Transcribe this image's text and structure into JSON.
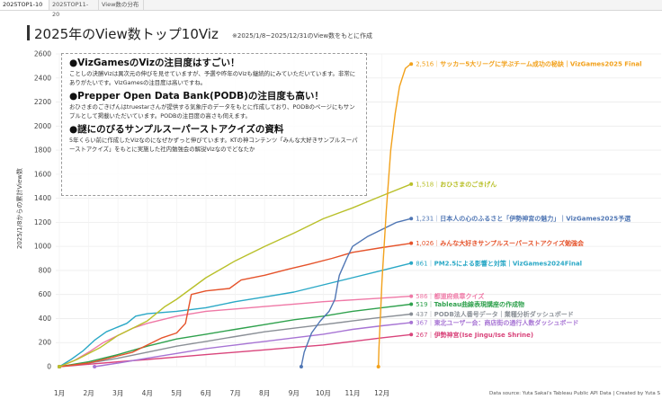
{
  "tabs": [
    {
      "label": "2025TOP1-10",
      "active": true
    },
    {
      "label": "2025TOP11-20",
      "active": false
    },
    {
      "label": "View数の分布",
      "active": false
    }
  ],
  "header": {
    "title": "2025年のView数トップ10Viz",
    "subtitle": "※2025/1/8~2025/12/31のView数をもとに作成"
  },
  "notes": [
    {
      "heading": "●VizGamesのVizの注目度はすごい！",
      "body": "ことしの決勝Vizは異次元の伸びを見せていますが、予選や昨年のVizも継続的にみていただいています。非常にありがたいです。VizGamesの注目度は高いですね。"
    },
    {
      "heading": "●Prepper Open Data Bank(PODB)の注目度も高い！",
      "body": "おひさまのごきげんはtruestarさんが提供する気象庁のデータをもとに作成しており、PODBのページにもサンプルとして掲載いただいています。PODBの注目度の高さも伺えます。"
    },
    {
      "heading": "●謎にのびるサンプルスーパーストアクイズの資料",
      "body": "5年くらい前に作成したVizなのになぜかずっと伸びています。KTの神コンテンツ「みんな大好きサンプルスーパーストアクイズ」をもとに実施した社内勉強会の解説Vizなのでどなたか"
    }
  ],
  "source": "Data source: Yuta Sakai's Tableau Public API Data | Created by Yuta S",
  "chart_data": {
    "type": "line",
    "ylabel": "2025/1/8からの累計View数",
    "ylim": [
      0,
      2600
    ],
    "yticks": [
      0,
      200,
      400,
      600,
      800,
      1000,
      1200,
      1400,
      1600,
      1800,
      2000,
      2200,
      2400,
      2600
    ],
    "xlim": [
      1,
      13.2
    ],
    "xticks": [
      {
        "v": 1,
        "label": "1月"
      },
      {
        "v": 2,
        "label": "2月"
      },
      {
        "v": 3,
        "label": "3月"
      },
      {
        "v": 4,
        "label": "4月"
      },
      {
        "v": 5,
        "label": "5月"
      },
      {
        "v": 6,
        "label": "6月"
      },
      {
        "v": 7,
        "label": "7月"
      },
      {
        "v": 8,
        "label": "8月"
      },
      {
        "v": 9,
        "label": "9月"
      },
      {
        "v": 10,
        "label": "10月"
      },
      {
        "v": 11,
        "label": "11月"
      },
      {
        "v": 12,
        "label": "12月"
      }
    ],
    "grid": true,
    "series": [
      {
        "value_label": "2,516",
        "name": "サッカー5大リーグに学ぶチーム成功の秘訣｜VizGames2025 Final",
        "color": "#f2a11b",
        "points": [
          [
            11.88,
            0
          ],
          [
            11.9,
            150
          ],
          [
            12.0,
            700
          ],
          [
            12.15,
            1300
          ],
          [
            12.3,
            1800
          ],
          [
            12.45,
            2100
          ],
          [
            12.6,
            2330
          ],
          [
            12.8,
            2480
          ],
          [
            12.95,
            2510
          ],
          [
            13.0,
            2516
          ]
        ]
      },
      {
        "value_label": "1,518",
        "name": "おひさまのごきげん",
        "color": "#b9c02a",
        "points": [
          [
            1.0,
            0
          ],
          [
            1.6,
            60
          ],
          [
            2.4,
            160
          ],
          [
            3.0,
            260
          ],
          [
            3.5,
            320
          ],
          [
            4.0,
            380
          ],
          [
            4.6,
            500
          ],
          [
            5.0,
            560
          ],
          [
            5.5,
            650
          ],
          [
            6.0,
            740
          ],
          [
            7.0,
            880
          ],
          [
            8.0,
            1000
          ],
          [
            9.0,
            1110
          ],
          [
            10.0,
            1230
          ],
          [
            11.0,
            1320
          ],
          [
            12.0,
            1420
          ],
          [
            13.0,
            1518
          ]
        ]
      },
      {
        "value_label": "1,231",
        "name": "日本人の心のふるさと「伊勢神宮の魅力」｜VizGames2025予選",
        "color": "#4f76b4",
        "points": [
          [
            9.25,
            0
          ],
          [
            9.35,
            120
          ],
          [
            9.6,
            280
          ],
          [
            9.9,
            380
          ],
          [
            10.2,
            460
          ],
          [
            10.4,
            560
          ],
          [
            10.5,
            700
          ],
          [
            10.55,
            760
          ],
          [
            10.8,
            900
          ],
          [
            11.0,
            1000
          ],
          [
            11.5,
            1080
          ],
          [
            12.0,
            1140
          ],
          [
            12.5,
            1200
          ],
          [
            13.0,
            1231
          ]
        ]
      },
      {
        "value_label": "1,026",
        "name": "みんな大好きサンプルスーパーストアクイズ勉強会",
        "color": "#e5532b",
        "points": [
          [
            1.0,
            0
          ],
          [
            2.0,
            30
          ],
          [
            3.0,
            90
          ],
          [
            3.5,
            120
          ],
          [
            4.0,
            180
          ],
          [
            4.5,
            240
          ],
          [
            5.0,
            280
          ],
          [
            5.3,
            360
          ],
          [
            5.5,
            600
          ],
          [
            6.0,
            630
          ],
          [
            6.8,
            650
          ],
          [
            7.2,
            720
          ],
          [
            8.0,
            760
          ],
          [
            8.8,
            810
          ],
          [
            9.5,
            850
          ],
          [
            10.3,
            900
          ],
          [
            11.0,
            950
          ],
          [
            12.0,
            990
          ],
          [
            13.0,
            1026
          ]
        ]
      },
      {
        "value_label": "861",
        "name": "PM2.5による影響と対策｜VizGames2024Final",
        "color": "#2aa8c6",
        "points": [
          [
            1.0,
            0
          ],
          [
            1.4,
            60
          ],
          [
            1.8,
            130
          ],
          [
            2.2,
            220
          ],
          [
            2.6,
            290
          ],
          [
            3.0,
            330
          ],
          [
            3.3,
            360
          ],
          [
            3.6,
            420
          ],
          [
            4.0,
            440
          ],
          [
            5.0,
            460
          ],
          [
            6.0,
            490
          ],
          [
            7.0,
            540
          ],
          [
            8.0,
            580
          ],
          [
            9.0,
            620
          ],
          [
            10.0,
            680
          ],
          [
            11.0,
            740
          ],
          [
            12.0,
            800
          ],
          [
            13.0,
            861
          ]
        ]
      },
      {
        "value_label": "586",
        "name": "都道府県章クイズ",
        "color": "#ef78a6",
        "points": [
          [
            1.0,
            0
          ],
          [
            1.5,
            50
          ],
          [
            2.0,
            120
          ],
          [
            2.5,
            200
          ],
          [
            3.0,
            260
          ],
          [
            3.5,
            320
          ],
          [
            4.0,
            360
          ],
          [
            5.0,
            420
          ],
          [
            6.0,
            460
          ],
          [
            7.0,
            480
          ],
          [
            8.0,
            500
          ],
          [
            9.0,
            520
          ],
          [
            10.0,
            540
          ],
          [
            11.0,
            555
          ],
          [
            12.0,
            570
          ],
          [
            13.0,
            586
          ]
        ]
      },
      {
        "value_label": "519",
        "name": "Tableau曲線表現講座の作成物",
        "color": "#2fa14d",
        "points": [
          [
            1.0,
            0
          ],
          [
            2.0,
            40
          ],
          [
            3.0,
            100
          ],
          [
            4.0,
            170
          ],
          [
            5.0,
            230
          ],
          [
            6.0,
            270
          ],
          [
            7.0,
            310
          ],
          [
            8.0,
            350
          ],
          [
            9.0,
            390
          ],
          [
            10.0,
            420
          ],
          [
            11.0,
            460
          ],
          [
            12.0,
            490
          ],
          [
            13.0,
            519
          ]
        ]
      },
      {
        "value_label": "437",
        "name": "PODB法人番号データ｜業種分析ダッシュボード",
        "color": "#8a8f96",
        "points": [
          [
            1.0,
            0
          ],
          [
            2.0,
            30
          ],
          [
            3.0,
            70
          ],
          [
            4.0,
            120
          ],
          [
            5.0,
            170
          ],
          [
            6.0,
            210
          ],
          [
            7.0,
            250
          ],
          [
            8.0,
            290
          ],
          [
            9.0,
            320
          ],
          [
            10.0,
            350
          ],
          [
            11.0,
            380
          ],
          [
            12.0,
            410
          ],
          [
            13.0,
            437
          ]
        ]
      },
      {
        "value_label": "367",
        "name": "東北ユーザー会：商店街の通行人数ダッシュボード",
        "color": "#a774d4",
        "points": [
          [
            2.2,
            0
          ],
          [
            3.0,
            30
          ],
          [
            4.0,
            70
          ],
          [
            5.0,
            110
          ],
          [
            6.0,
            150
          ],
          [
            7.0,
            180
          ],
          [
            8.0,
            210
          ],
          [
            9.0,
            240
          ],
          [
            10.0,
            270
          ],
          [
            11.0,
            310
          ],
          [
            12.0,
            340
          ],
          [
            13.0,
            367
          ]
        ]
      },
      {
        "value_label": "267",
        "name": "伊勢神宮(Ise Jingu/Ise Shrine)",
        "color": "#d9447b",
        "points": [
          [
            1.0,
            0
          ],
          [
            2.0,
            20
          ],
          [
            3.0,
            40
          ],
          [
            4.0,
            60
          ],
          [
            5.0,
            80
          ],
          [
            6.0,
            100
          ],
          [
            7.0,
            120
          ],
          [
            8.0,
            140
          ],
          [
            9.0,
            160
          ],
          [
            10.0,
            180
          ],
          [
            11.0,
            210
          ],
          [
            12.0,
            240
          ],
          [
            13.0,
            267
          ]
        ]
      }
    ]
  }
}
